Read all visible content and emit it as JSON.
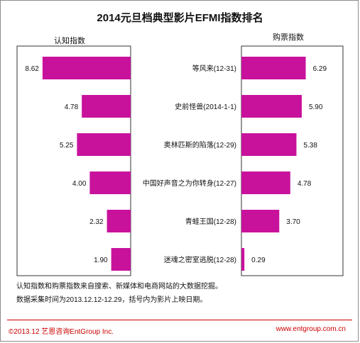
{
  "title": "2014元旦档典型影片EFMI指数排名",
  "left_panel_label": "认知指数",
  "right_panel_label": "购票指数",
  "notes": [
    "认知指数和购票指数来自搜索、新媒体和电商网站的大数据挖掘。",
    "数据采集时间为2013.12.12-12.29，括号内为影片上映日期。"
  ],
  "footer": {
    "left": "©2013.12  艺恩咨询EntGroup Inc.",
    "right": "www.entgroup.com.cn"
  },
  "colors": {
    "bar": "#c8129c",
    "footer": "#cc0000"
  },
  "chart_data": {
    "type": "bar",
    "orientation": "horizontal-butterfly",
    "categories": [
      "等风来(12-31)",
      "史前怪兽(2014-1-1)",
      "奥林匹斯的陷落(12-29)",
      "中国好声音之为你转身(12-27)",
      "青蛙王国(12-28)",
      "迷魂之密室逃脱(12-28)"
    ],
    "series": [
      {
        "name": "认知指数",
        "values": [
          8.62,
          4.78,
          5.25,
          4.0,
          2.32,
          1.9
        ],
        "value_labels": [
          "8.62",
          "4.78",
          "5.25",
          "4.00",
          "2.32",
          "1.90"
        ]
      },
      {
        "name": "购票指数",
        "values": [
          6.29,
          5.9,
          5.38,
          4.78,
          3.7,
          0.29
        ],
        "value_labels": [
          "6.29",
          "5.90",
          "5.38",
          "4.78",
          "3.70",
          "0.29"
        ]
      }
    ],
    "xlim": [
      0,
      10
    ],
    "grid": false,
    "legend": "none"
  }
}
